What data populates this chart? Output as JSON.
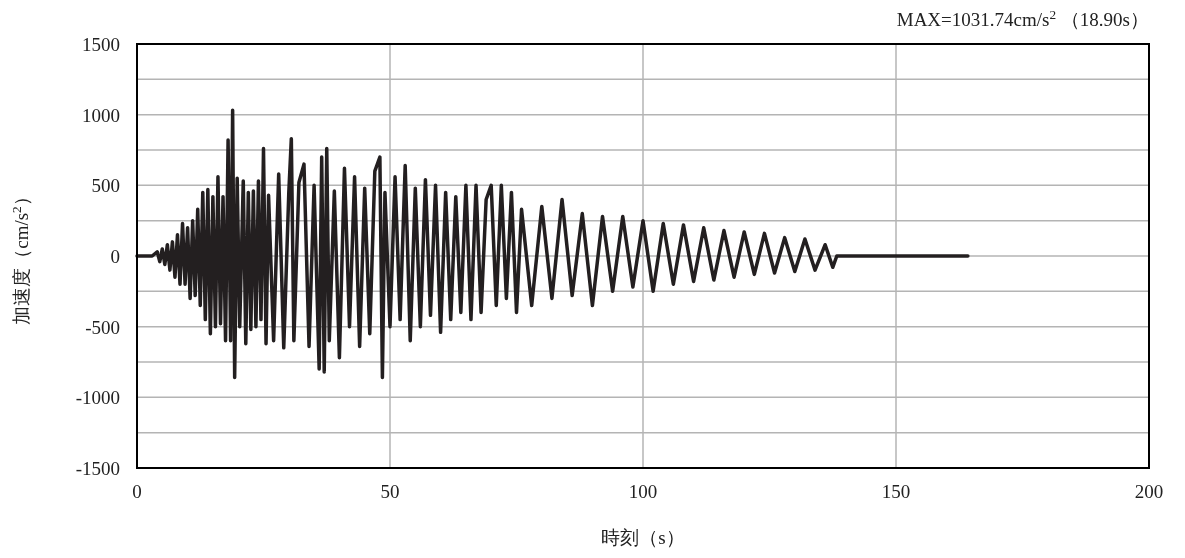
{
  "chart_data": {
    "type": "line",
    "xlabel": "時刻（s）",
    "ylabel": "加速度（cm/s$^{2}$）",
    "annotations": [
      "MAX=1031.74cm/s$^{2}$ （18.90s）"
    ],
    "color": "#231f20",
    "grid": true,
    "xlim": [
      0,
      200
    ],
    "xticks": [
      0,
      50,
      100,
      150,
      200
    ],
    "ylim": [
      -1500,
      1500
    ],
    "yticks": [
      -1500,
      {
        "value": -1250,
        "label": null
      },
      -1000,
      {
        "value": -750,
        "label": null
      },
      -500,
      {
        "value": -250,
        "label": null
      },
      0,
      {
        "value": 250,
        "label": null
      },
      500,
      {
        "value": 750,
        "label": null
      },
      1000,
      {
        "value": 1250,
        "label": null
      },
      1500
    ],
    "x": [
      0,
      3,
      4,
      4.5,
      5,
      5.5,
      6,
      6.5,
      7,
      7.5,
      8,
      8.5,
      9,
      9.5,
      10,
      10.5,
      11,
      11.5,
      12,
      12.5,
      13,
      13.5,
      14,
      14.5,
      15,
      15.5,
      16,
      16.5,
      17,
      17.5,
      18,
      18.5,
      18.9,
      19.3,
      19.8,
      20.3,
      21,
      21.5,
      22,
      22.5,
      23,
      23.5,
      24,
      24.5,
      25,
      25.5,
      26,
      27,
      28,
      29,
      30,
      30.5,
      31,
      32,
      33,
      34,
      35,
      36,
      36.5,
      37,
      37.5,
      38,
      39,
      40,
      41,
      42,
      43,
      44,
      45,
      46,
      47,
      48,
      48.5,
      49,
      50,
      51,
      52,
      53,
      54,
      55,
      56,
      57,
      58,
      59,
      60,
      61,
      62,
      63,
      64,
      65,
      66,
      67,
      68,
      69,
      70,
      71,
      72,
      73,
      74,
      75,
      76,
      78,
      80,
      82,
      84,
      86,
      88,
      90,
      92,
      94,
      96,
      98,
      100,
      102,
      104,
      106,
      108,
      110,
      112,
      114,
      116,
      118,
      120,
      122,
      124,
      126,
      128,
      130,
      132,
      134,
      136,
      137.5,
      138.3,
      164.2
    ],
    "values": [
      0,
      0,
      30,
      -40,
      50,
      -60,
      80,
      -100,
      100,
      -150,
      150,
      -200,
      230,
      -200,
      200,
      -300,
      250,
      -280,
      330,
      -350,
      450,
      -450,
      470,
      -550,
      420,
      -500,
      560,
      -480,
      420,
      -600,
      820,
      -600,
      1031.74,
      -860,
      550,
      -500,
      530,
      -620,
      450,
      -520,
      460,
      -500,
      530,
      -450,
      760,
      -620,
      430,
      -600,
      580,
      -650,
      450,
      830,
      -600,
      520,
      650,
      -640,
      500,
      -800,
      700,
      -820,
      760,
      -600,
      460,
      -720,
      620,
      -500,
      560,
      -640,
      480,
      -550,
      600,
      700,
      -860,
      450,
      -500,
      560,
      -450,
      640,
      -600,
      480,
      -500,
      540,
      -420,
      500,
      -540,
      450,
      -450,
      420,
      -400,
      500,
      -450,
      500,
      -400,
      400,
      500,
      -350,
      500,
      -300,
      450,
      -400,
      330,
      -350,
      350,
      -300,
      400,
      -280,
      300,
      -350,
      280,
      -250,
      280,
      -220,
      250,
      -250,
      230,
      -200,
      220,
      -180,
      200,
      -170,
      180,
      -150,
      170,
      -130,
      160,
      -120,
      130,
      -110,
      120,
      -100,
      80,
      -80,
      0,
      0
    ]
  }
}
